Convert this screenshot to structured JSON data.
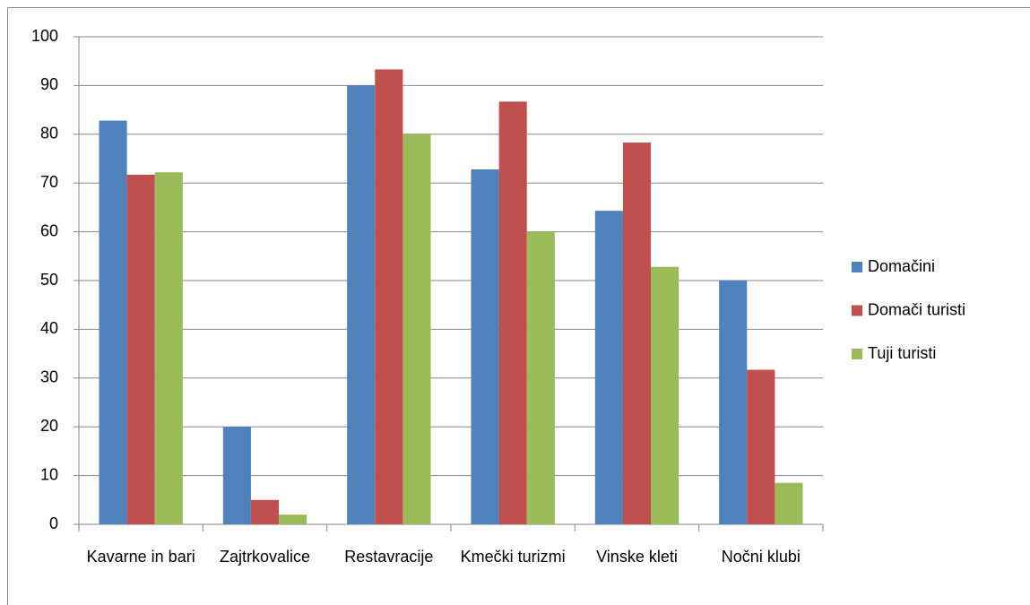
{
  "chart_data": {
    "type": "bar",
    "categories": [
      "Kavarne in bari",
      "Zajtrkovalice",
      "Restavracije",
      "Kmečki turizmi",
      "Vinske kleti",
      "Nočni klubi"
    ],
    "series": [
      {
        "name": "Domačini",
        "color": "#4f81bd",
        "values": [
          82.8,
          20,
          90,
          72.8,
          64.3,
          50
        ]
      },
      {
        "name": "Domači turisti",
        "color": "#c0504d",
        "values": [
          71.7,
          5,
          93.3,
          86.7,
          78.3,
          31.7
        ]
      },
      {
        "name": "Tuji turisti",
        "color": "#9bbb59",
        "values": [
          72.2,
          2,
          80,
          60,
          52.8,
          8.5
        ]
      }
    ],
    "ylim": [
      0,
      100
    ],
    "yticks": [
      0,
      10,
      20,
      30,
      40,
      50,
      60,
      70,
      80,
      90,
      100
    ],
    "grid": true,
    "legend": "right"
  }
}
